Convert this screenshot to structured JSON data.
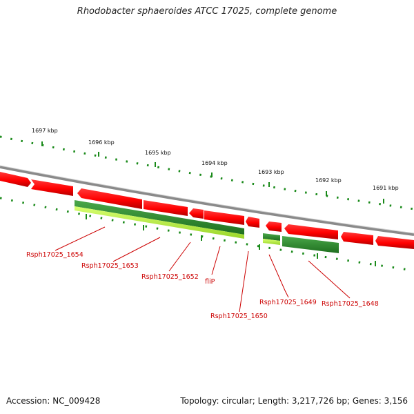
{
  "title": "Rhodobacter sphaeroides ATCC 17025, complete genome",
  "footer": {
    "accession": "Accession: NC_009428",
    "topology": "Topology: circular; Length: 3,217,726 bp; Genes: 3,156"
  },
  "ruler_labels": [
    "1697 kbp",
    "1696 kbp",
    "1695 kbp",
    "1694 kbp",
    "1693 kbp",
    "1692 kbp",
    "1691 kbp"
  ],
  "gene_labels": [
    "Rsph17025_1654",
    "Rsph17025_1653",
    "Rsph17025_1652",
    "fliP",
    "Rsph17025_1650",
    "Rsph17025_1649",
    "Rsph17025_1648"
  ],
  "colors": {
    "backbone": "#808080",
    "gene_forward": "#ff0000",
    "gene_forward_dark": "#bb0000",
    "gene_highlight": "#2e8b2e",
    "gene_highlight_light": "#b8f040",
    "label": "#cc0000",
    "tick": "#1a8a1a"
  }
}
